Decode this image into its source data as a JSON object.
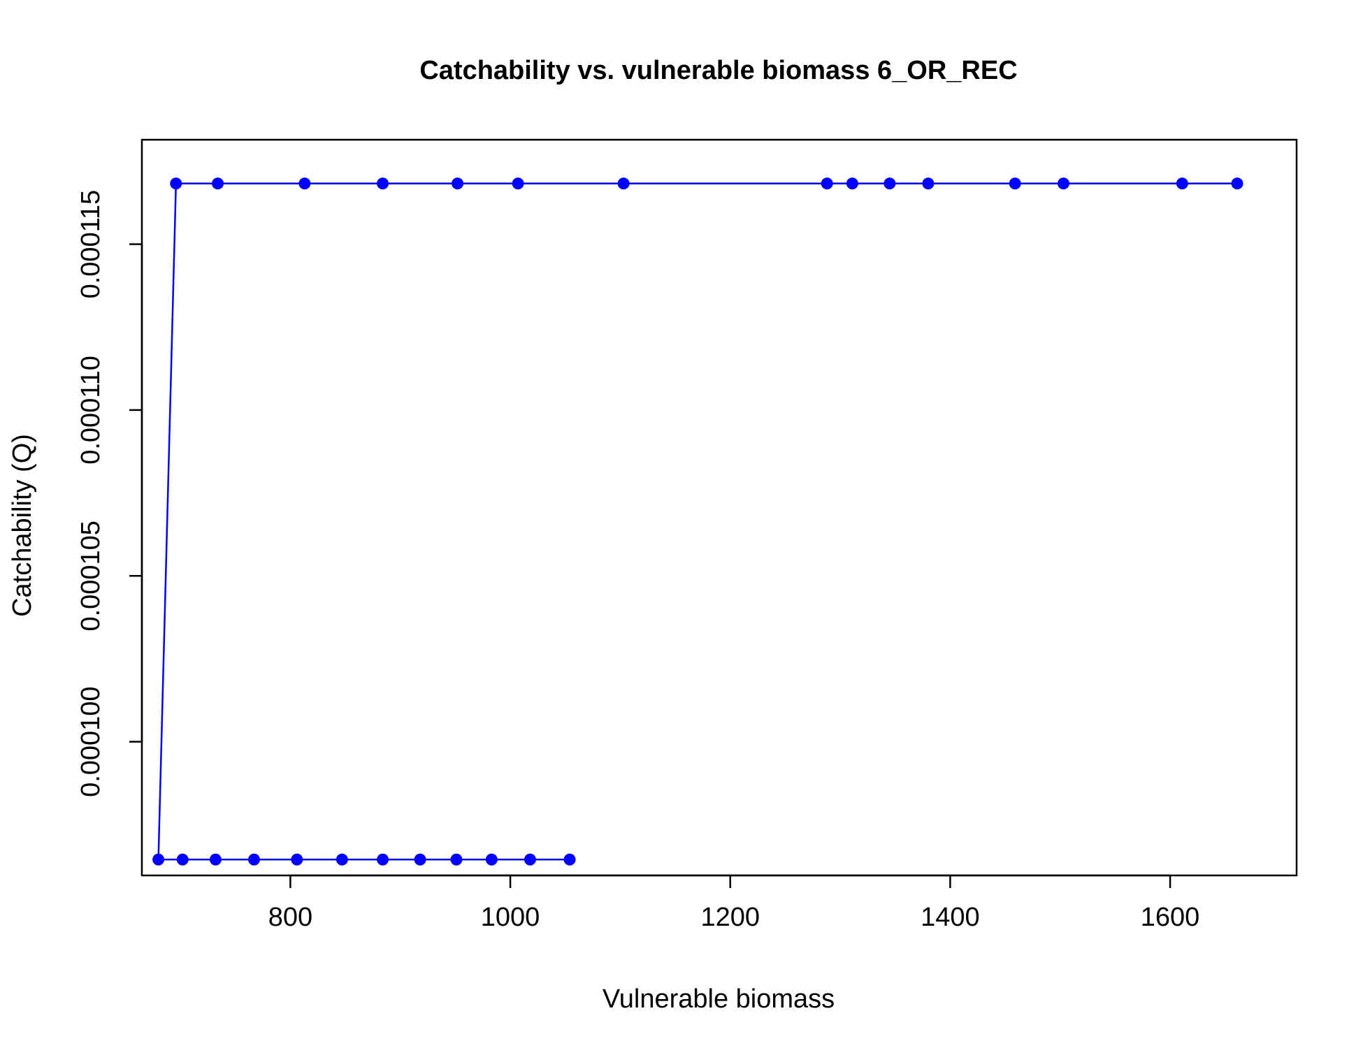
{
  "chart_data": {
    "type": "line",
    "title": "Catchability vs. vulnerable biomass 6_OR_REC",
    "xlabel": "Vulnerable biomass",
    "ylabel": "Catchability (Q)",
    "xlim": [
      665,
      1715
    ],
    "ylim": [
      9.597e-05,
      0.00011815
    ],
    "xticks": [
      800,
      1000,
      1200,
      1400,
      1600
    ],
    "xtick_labels": [
      "800",
      "1000",
      "1200",
      "1400",
      "1600"
    ],
    "yticks": [
      0.0001,
      0.000105,
      0.00011,
      0.000115
    ],
    "ytick_labels": [
      "0.000100",
      "0.000105",
      "0.000110",
      "0.000115"
    ],
    "grid": false,
    "series": [
      {
        "color": "#0000ff",
        "marker": "filled-circle",
        "x": [
          1054,
          1018,
          983,
          951,
          918,
          884,
          847,
          806,
          767,
          732,
          702,
          680,
          696,
          734,
          813,
          884,
          952,
          1007,
          1103,
          1288,
          1311,
          1345,
          1380,
          1459,
          1503,
          1611,
          1661
        ],
        "y": [
          9.645e-05,
          9.645e-05,
          9.645e-05,
          9.645e-05,
          9.645e-05,
          9.645e-05,
          9.645e-05,
          9.645e-05,
          9.645e-05,
          9.645e-05,
          9.645e-05,
          9.645e-05,
          0.00011683,
          0.00011683,
          0.00011683,
          0.00011683,
          0.00011683,
          0.00011683,
          0.00011683,
          0.00011683,
          0.00011683,
          0.00011683,
          0.00011683,
          0.00011683,
          0.00011683,
          0.00011683,
          0.00011683
        ]
      }
    ]
  }
}
